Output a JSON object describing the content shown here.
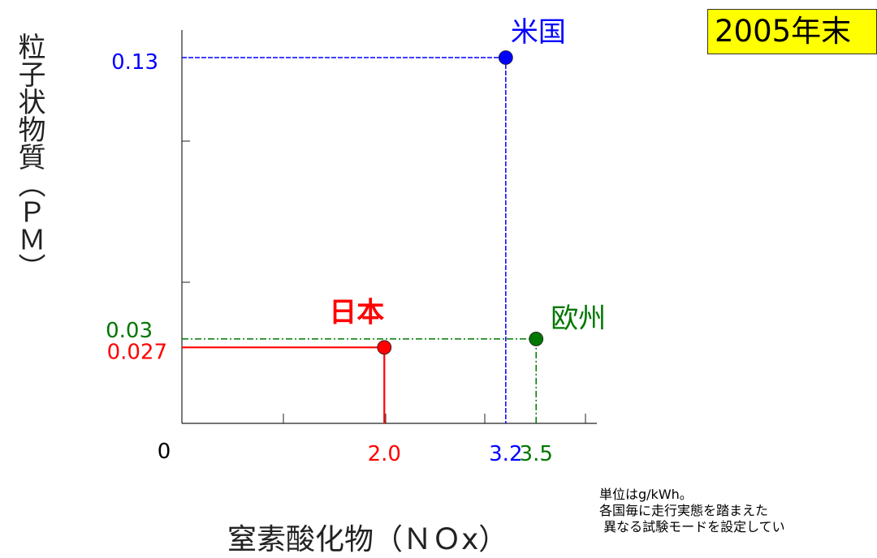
{
  "badge": "2005年末",
  "ylabel": "粒子状物質（ＰＭ）",
  "xlabel": "窒素酸化物（ＮＯx）",
  "note": [
    "単位はg/kWh。",
    "各国毎に走行実態を踏まえた",
    " 異なる試験モードを設定してい"
  ],
  "chart_data": {
    "type": "scatter",
    "xlabel": "窒素酸化物（ＮＯx）",
    "ylabel": "粒子状物質（ＰＭ）",
    "origin_label": "0",
    "xlim": [
      0,
      4.1
    ],
    "ylim": [
      0,
      0.13
    ],
    "grid": false,
    "series": [
      {
        "name": "日本",
        "x": 2.0,
        "y": 0.027,
        "x_label": "2.0",
        "y_label": "0.027",
        "color": "#ff0000",
        "style": "solid"
      },
      {
        "name": "米国",
        "x": 3.2,
        "y": 0.13,
        "x_label": "3.2",
        "y_label": "0.13",
        "color": "#0000ff",
        "style": "dashed"
      },
      {
        "name": "欧州",
        "x": 3.5,
        "y": 0.03,
        "x_label": "3.5",
        "y_label": "0.03",
        "color": "#007700",
        "style": "dashdot"
      }
    ]
  }
}
